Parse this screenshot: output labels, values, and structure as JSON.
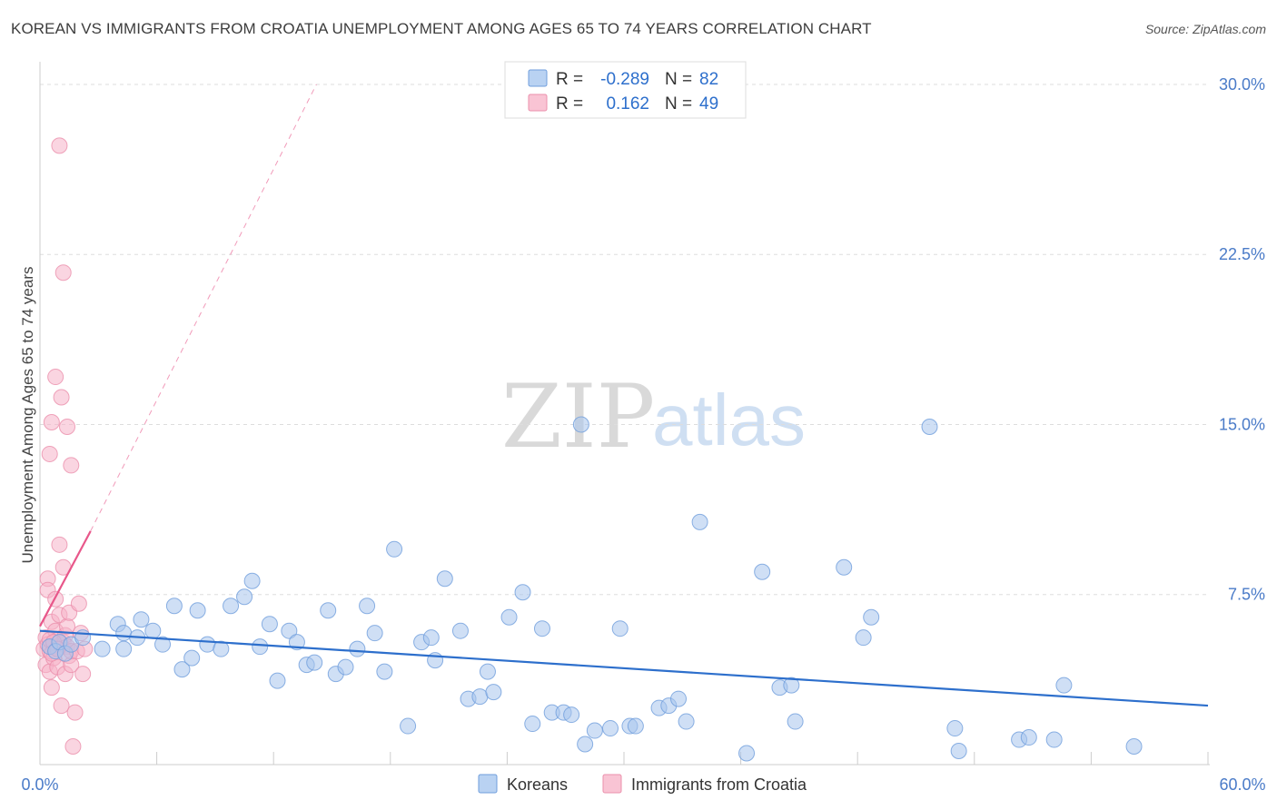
{
  "chart_data": {
    "type": "scatter",
    "title": "KOREAN VS IMMIGRANTS FROM CROATIA UNEMPLOYMENT AMONG AGES 65 TO 74 YEARS CORRELATION CHART",
    "source": "Source: ZipAtlas.com",
    "xlabel": "",
    "ylabel": "Unemployment Among Ages 65 to 74 years",
    "xlim": [
      0,
      60
    ],
    "ylim": [
      0,
      31
    ],
    "x_tick_labels": [
      "0.0%",
      "60.0%"
    ],
    "y_ticks": [
      7.5,
      15.0,
      22.5,
      30.0
    ],
    "y_tick_labels": [
      "7.5%",
      "15.0%",
      "22.5%",
      "30.0%"
    ],
    "watermark": {
      "zip": "ZIP",
      "atlas": "atlas"
    },
    "legend": {
      "r_label": "R =",
      "n_label": "N =",
      "entries": [
        {
          "name": "Koreans",
          "r": "-0.289",
          "n": "82",
          "fill": "#b9d2f2",
          "stroke": "#6f9edc"
        },
        {
          "name": "Immigrants from Croatia",
          "r": "0.162",
          "n": "49",
          "fill": "#f9c4d4",
          "stroke": "#eb8fab"
        }
      ]
    },
    "colors": {
      "koreans_point": "#a7c5ec",
      "koreans_line": "#2d6fcc",
      "croatia_point": "#f5b3c8",
      "croatia_line": "#e8578a",
      "value_text": "#2d6fcc",
      "grid": "#dddddd"
    },
    "series": [
      {
        "name": "Koreans",
        "trend": {
          "x": [
            0,
            60
          ],
          "y": [
            5.9,
            2.6
          ]
        },
        "points": [
          [
            0.5,
            5.2
          ],
          [
            0.8,
            5.0
          ],
          [
            1.0,
            5.4
          ],
          [
            1.3,
            4.9
          ],
          [
            1.6,
            5.3
          ],
          [
            2.2,
            5.6
          ],
          [
            3.2,
            5.1
          ],
          [
            4.0,
            6.2
          ],
          [
            4.3,
            5.8
          ],
          [
            4.3,
            5.1
          ],
          [
            5.0,
            5.6
          ],
          [
            5.2,
            6.4
          ],
          [
            5.8,
            5.9
          ],
          [
            6.3,
            5.3
          ],
          [
            6.9,
            7.0
          ],
          [
            7.3,
            4.2
          ],
          [
            7.8,
            4.7
          ],
          [
            8.1,
            6.8
          ],
          [
            8.6,
            5.3
          ],
          [
            9.3,
            5.1
          ],
          [
            9.8,
            7.0
          ],
          [
            10.5,
            7.4
          ],
          [
            10.9,
            8.1
          ],
          [
            11.3,
            5.2
          ],
          [
            11.8,
            6.2
          ],
          [
            12.2,
            3.7
          ],
          [
            12.8,
            5.9
          ],
          [
            13.2,
            5.4
          ],
          [
            13.7,
            4.4
          ],
          [
            14.1,
            4.5
          ],
          [
            14.8,
            6.8
          ],
          [
            15.2,
            4.0
          ],
          [
            15.7,
            4.3
          ],
          [
            16.3,
            5.1
          ],
          [
            16.8,
            7.0
          ],
          [
            17.2,
            5.8
          ],
          [
            17.7,
            4.1
          ],
          [
            18.2,
            9.5
          ],
          [
            18.9,
            1.7
          ],
          [
            19.6,
            5.4
          ],
          [
            20.1,
            5.6
          ],
          [
            20.3,
            4.6
          ],
          [
            20.8,
            8.2
          ],
          [
            21.6,
            5.9
          ],
          [
            22.0,
            2.9
          ],
          [
            22.6,
            3.0
          ],
          [
            23.0,
            4.1
          ],
          [
            23.3,
            3.2
          ],
          [
            24.1,
            6.5
          ],
          [
            24.8,
            7.6
          ],
          [
            25.3,
            1.8
          ],
          [
            25.8,
            6.0
          ],
          [
            26.3,
            2.3
          ],
          [
            26.9,
            2.3
          ],
          [
            27.3,
            2.2
          ],
          [
            27.8,
            15.0
          ],
          [
            28.0,
            0.9
          ],
          [
            28.5,
            1.5
          ],
          [
            29.3,
            1.6
          ],
          [
            29.8,
            6.0
          ],
          [
            30.3,
            1.7
          ],
          [
            30.6,
            1.7
          ],
          [
            31.8,
            2.5
          ],
          [
            32.3,
            2.6
          ],
          [
            32.8,
            2.9
          ],
          [
            33.2,
            1.9
          ],
          [
            33.9,
            10.7
          ],
          [
            36.3,
            0.5
          ],
          [
            37.1,
            8.5
          ],
          [
            38.0,
            3.4
          ],
          [
            38.6,
            3.5
          ],
          [
            38.8,
            1.9
          ],
          [
            41.3,
            8.7
          ],
          [
            42.3,
            5.6
          ],
          [
            42.7,
            6.5
          ],
          [
            45.7,
            14.9
          ],
          [
            47.0,
            1.6
          ],
          [
            47.2,
            0.6
          ],
          [
            50.3,
            1.1
          ],
          [
            50.8,
            1.2
          ],
          [
            52.1,
            1.1
          ],
          [
            52.6,
            3.5
          ],
          [
            56.2,
            0.8
          ]
        ]
      },
      {
        "name": "Immigrants from Croatia",
        "trend": {
          "x": [
            0,
            2.6
          ],
          "y": [
            6.1,
            10.3
          ]
        },
        "trend_extended": {
          "x": [
            2.6,
            14.2
          ],
          "y": [
            10.3,
            30.0
          ]
        },
        "points": [
          [
            0.2,
            5.1
          ],
          [
            0.3,
            4.4
          ],
          [
            0.3,
            5.6
          ],
          [
            0.4,
            8.2
          ],
          [
            0.4,
            7.7
          ],
          [
            0.5,
            4.1
          ],
          [
            0.5,
            5.0
          ],
          [
            0.6,
            6.3
          ],
          [
            0.6,
            3.4
          ],
          [
            0.7,
            5.2
          ],
          [
            0.7,
            4.7
          ],
          [
            0.8,
            7.3
          ],
          [
            0.8,
            5.9
          ],
          [
            0.9,
            5.5
          ],
          [
            0.9,
            4.3
          ],
          [
            1.0,
            9.7
          ],
          [
            1.0,
            6.6
          ],
          [
            1.1,
            5.3
          ],
          [
            1.1,
            2.6
          ],
          [
            1.2,
            8.7
          ],
          [
            1.2,
            5.4
          ],
          [
            1.3,
            4.0
          ],
          [
            1.3,
            5.7
          ],
          [
            1.4,
            6.1
          ],
          [
            1.4,
            5.2
          ],
          [
            1.5,
            6.7
          ],
          [
            1.5,
            4.8
          ],
          [
            1.6,
            4.4
          ],
          [
            1.6,
            5.0
          ],
          [
            1.7,
            0.8
          ],
          [
            1.8,
            2.3
          ],
          [
            1.9,
            5.0
          ],
          [
            2.0,
            7.1
          ],
          [
            2.1,
            5.8
          ],
          [
            2.2,
            4.0
          ],
          [
            2.3,
            5.1
          ],
          [
            0.5,
            13.7
          ],
          [
            0.6,
            15.1
          ],
          [
            0.8,
            17.1
          ],
          [
            1.0,
            27.3
          ],
          [
            1.1,
            16.2
          ],
          [
            1.2,
            21.7
          ],
          [
            1.4,
            14.9
          ],
          [
            1.6,
            13.2
          ],
          [
            0.4,
            5.3
          ],
          [
            0.5,
            5.5
          ],
          [
            0.6,
            4.9
          ],
          [
            0.7,
            5.4
          ],
          [
            0.9,
            5.1
          ]
        ]
      }
    ]
  }
}
